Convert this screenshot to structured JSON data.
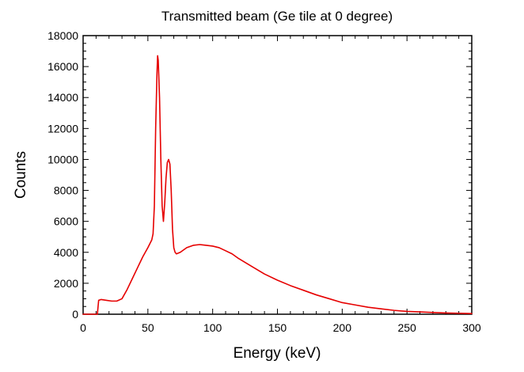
{
  "chart_data": {
    "type": "line",
    "title": "Transmitted beam (Ge tile at 0 degree)",
    "xlabel": "Energy (keV)",
    "ylabel": "Counts",
    "xlim": [
      0,
      300
    ],
    "ylim": [
      0,
      18000
    ],
    "xticks": [
      0,
      50,
      100,
      150,
      200,
      250,
      300
    ],
    "yticks": [
      0,
      2000,
      4000,
      6000,
      8000,
      10000,
      12000,
      14000,
      16000,
      18000
    ],
    "grid": false,
    "legend": "none",
    "series": [
      {
        "name": "Transmitted beam",
        "color": "#e60000",
        "x": [
          0,
          11,
          12,
          14,
          18,
          22,
          26,
          30,
          34,
          38,
          42,
          46,
          50,
          53,
          54,
          55,
          56,
          57,
          57.5,
          58,
          59,
          60,
          61,
          62,
          63,
          64,
          65,
          66,
          67,
          68,
          69,
          70,
          71,
          72,
          75,
          80,
          85,
          90,
          95,
          100,
          105,
          110,
          115,
          120,
          130,
          140,
          150,
          160,
          170,
          180,
          190,
          200,
          210,
          220,
          230,
          240,
          250,
          260,
          270,
          280,
          290,
          300
        ],
        "y": [
          0,
          0,
          900,
          950,
          900,
          850,
          850,
          1000,
          1600,
          2300,
          3000,
          3700,
          4300,
          4800,
          5200,
          7000,
          12000,
          15500,
          16700,
          16400,
          14000,
          10000,
          7000,
          6000,
          7200,
          8800,
          9800,
          10000,
          9700,
          8000,
          5500,
          4300,
          4000,
          3900,
          4000,
          4300,
          4450,
          4500,
          4450,
          4400,
          4300,
          4100,
          3900,
          3600,
          3100,
          2600,
          2200,
          1850,
          1550,
          1250,
          1000,
          750,
          600,
          450,
          350,
          250,
          180,
          150,
          110,
          80,
          60,
          40
        ]
      }
    ]
  }
}
